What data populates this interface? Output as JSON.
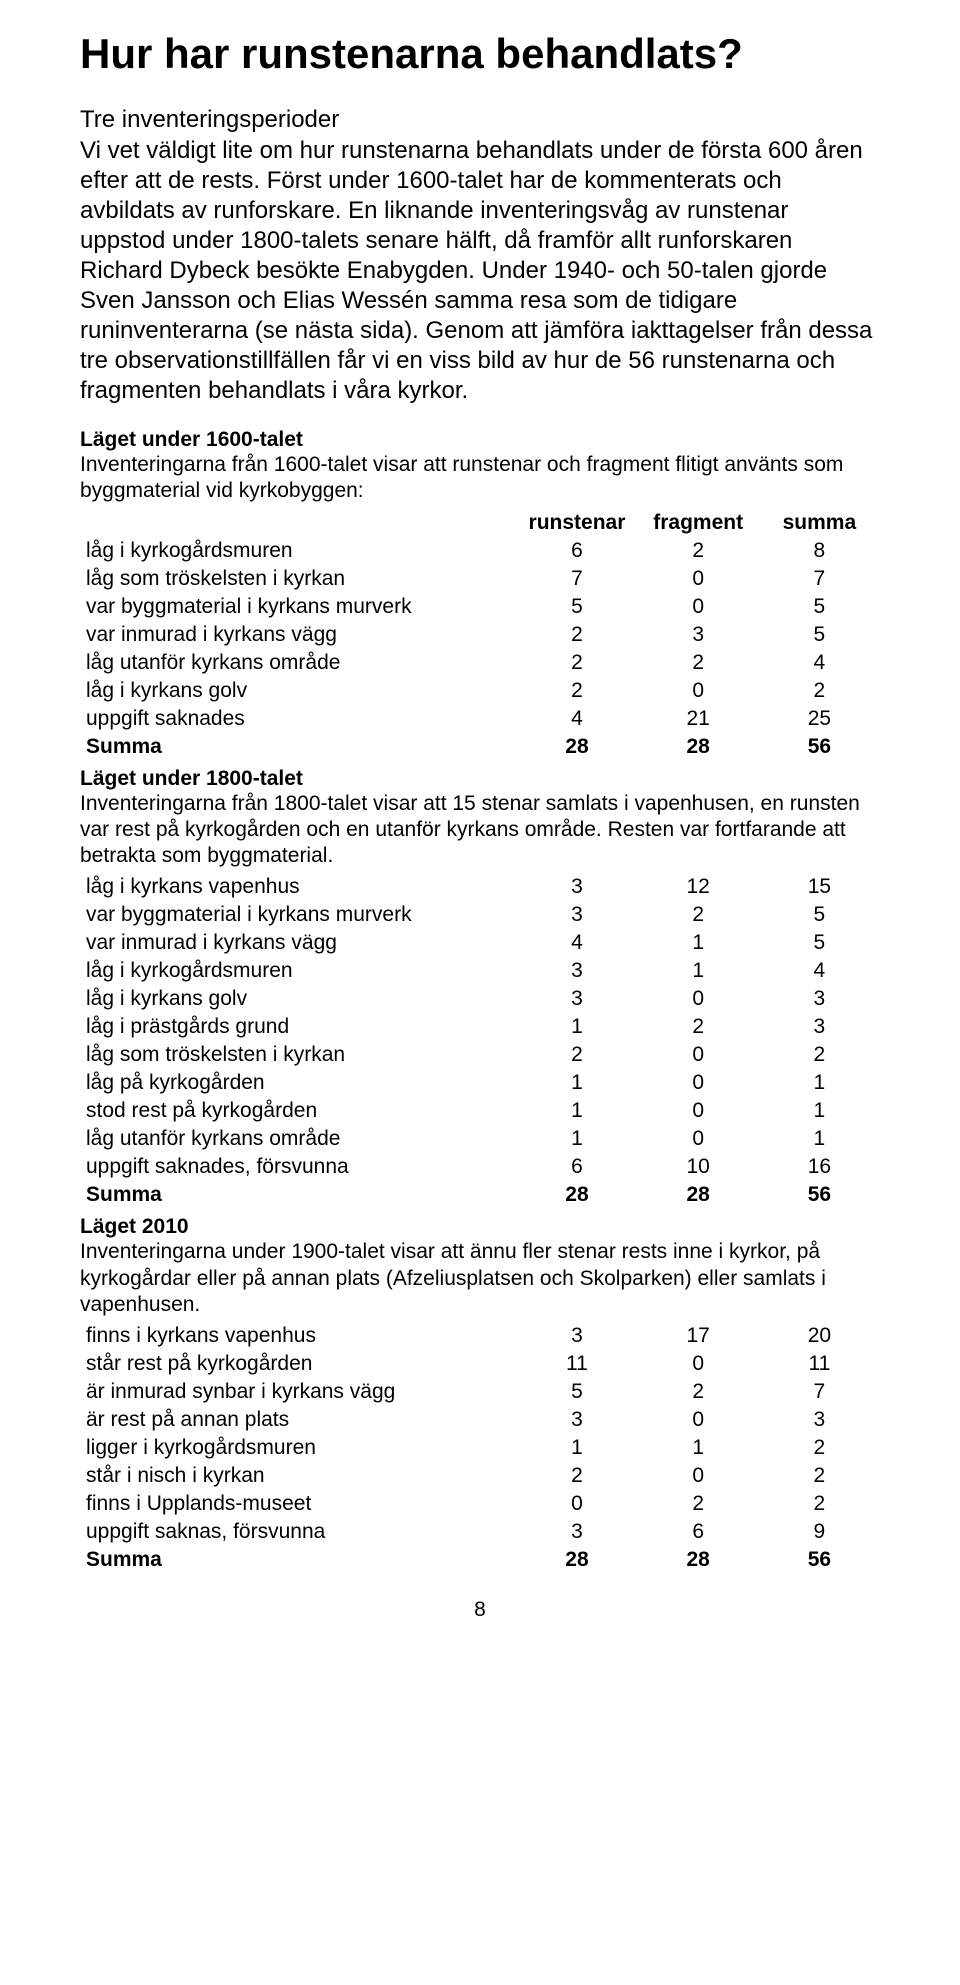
{
  "page_number": "8",
  "title": "Hur har runstenarna behandlats?",
  "intro_heading": "Tre inventeringsperioder",
  "intro_body": "Vi vet väldigt lite om hur runstenarna behandlats under de första 600 åren efter att de rests. Först under 1600-talet har de kommenterats och avbildats av runforskare. En liknande inventeringsvåg av runstenar uppstod under 1800-talets senare hälft, då framför allt runforskaren Richard Dybeck besökte Enabygden. Under 1940- och 50-talen gjorde Sven Jansson och Elias Wessén samma resa som de tidigare runinventerarna (se nästa sida). Genom att jämföra iakttagelser från dessa tre observationstillfällen får vi en viss bild av hur de 56 runstenarna och fragmenten behandlats i våra kyrkor.",
  "columns": {
    "c1": "runstenar",
    "c2": "fragment",
    "c3": "summa"
  },
  "sections": [
    {
      "title": "Läget under 1600-talet",
      "intro": "Inventeringarna från 1600-talet visar att runstenar och fragment flitigt använts som byggmaterial vid kyrkobyggen:",
      "show_header": true,
      "rows": [
        {
          "label": "låg i kyrkogårdsmuren",
          "a": "6",
          "b": "2",
          "c": "8"
        },
        {
          "label": "låg som tröskelsten i kyrkan",
          "a": "7",
          "b": "0",
          "c": "7"
        },
        {
          "label": "var byggmaterial i kyrkans murverk",
          "a": "5",
          "b": "0",
          "c": "5"
        },
        {
          "label": "var inmurad i kyrkans vägg",
          "a": "2",
          "b": "3",
          "c": "5"
        },
        {
          "label": "låg utanför kyrkans område",
          "a": "2",
          "b": "2",
          "c": "4"
        },
        {
          "label": "låg i kyrkans golv",
          "a": "2",
          "b": "0",
          "c": "2"
        },
        {
          "label": "uppgift saknades",
          "a": "4",
          "b": "21",
          "c": "25"
        }
      ],
      "sum": {
        "label": "Summa",
        "a": "28",
        "b": "28",
        "c": "56"
      }
    },
    {
      "title": "Läget under 1800-talet",
      "intro": "Inventeringarna från 1800-talet visar att 15 stenar samlats i vapenhusen, en runsten var rest på kyrkogården och en utanför kyrkans område. Resten var fortfarande att betrakta som byggmaterial.",
      "show_header": false,
      "rows": [
        {
          "label": "låg i kyrkans vapenhus",
          "a": "3",
          "b": "12",
          "c": "15"
        },
        {
          "label": "var byggmaterial i kyrkans murverk",
          "a": "3",
          "b": "2",
          "c": "5"
        },
        {
          "label": "var inmurad i kyrkans vägg",
          "a": "4",
          "b": "1",
          "c": "5"
        },
        {
          "label": "låg i kyrkogårdsmuren",
          "a": "3",
          "b": "1",
          "c": "4"
        },
        {
          "label": "låg i kyrkans golv",
          "a": "3",
          "b": "0",
          "c": "3"
        },
        {
          "label": "låg i prästgårds grund",
          "a": "1",
          "b": "2",
          "c": "3"
        },
        {
          "label": "låg som tröskelsten i kyrkan",
          "a": "2",
          "b": "0",
          "c": "2"
        },
        {
          "label": "låg på kyrkogården",
          "a": "1",
          "b": "0",
          "c": "1"
        },
        {
          "label": "stod rest på kyrkogården",
          "a": "1",
          "b": "0",
          "c": "1"
        },
        {
          "label": "låg utanför kyrkans område",
          "a": "1",
          "b": "0",
          "c": "1"
        },
        {
          "label": "uppgift saknades, försvunna",
          "a": "6",
          "b": "10",
          "c": "16"
        }
      ],
      "sum": {
        "label": "Summa",
        "a": "28",
        "b": "28",
        "c": "56"
      }
    },
    {
      "title": "Läget 2010",
      "intro": "Inventeringarna under 1900-talet visar att ännu fler stenar rests inne i kyrkor, på kyrkogårdar eller på annan plats (Afzeliusplatsen och Skolparken) eller samlats i vapenhusen.",
      "show_header": false,
      "rows": [
        {
          "label": "finns i kyrkans vapenhus",
          "a": "3",
          "b": "17",
          "c": "20"
        },
        {
          "label": "står rest på kyrkogården",
          "a": "11",
          "b": "0",
          "c": "11"
        },
        {
          "label": "är inmurad synbar i kyrkans vägg",
          "a": "5",
          "b": "2",
          "c": "7"
        },
        {
          "label": "är rest på annan plats",
          "a": "3",
          "b": "0",
          "c": "3"
        },
        {
          "label": "ligger i kyrkogårdsmuren",
          "a": "1",
          "b": "1",
          "c": "2"
        },
        {
          "label": "står i nisch i kyrkan",
          "a": "2",
          "b": "0",
          "c": "2"
        },
        {
          "label": "finns i Upplands-museet",
          "a": "0",
          "b": "2",
          "c": "2"
        },
        {
          "label": "uppgift saknas, försvunna",
          "a": "3",
          "b": "6",
          "c": "9"
        }
      ],
      "sum": {
        "label": "Summa",
        "a": "28",
        "b": "28",
        "c": "56"
      }
    }
  ]
}
